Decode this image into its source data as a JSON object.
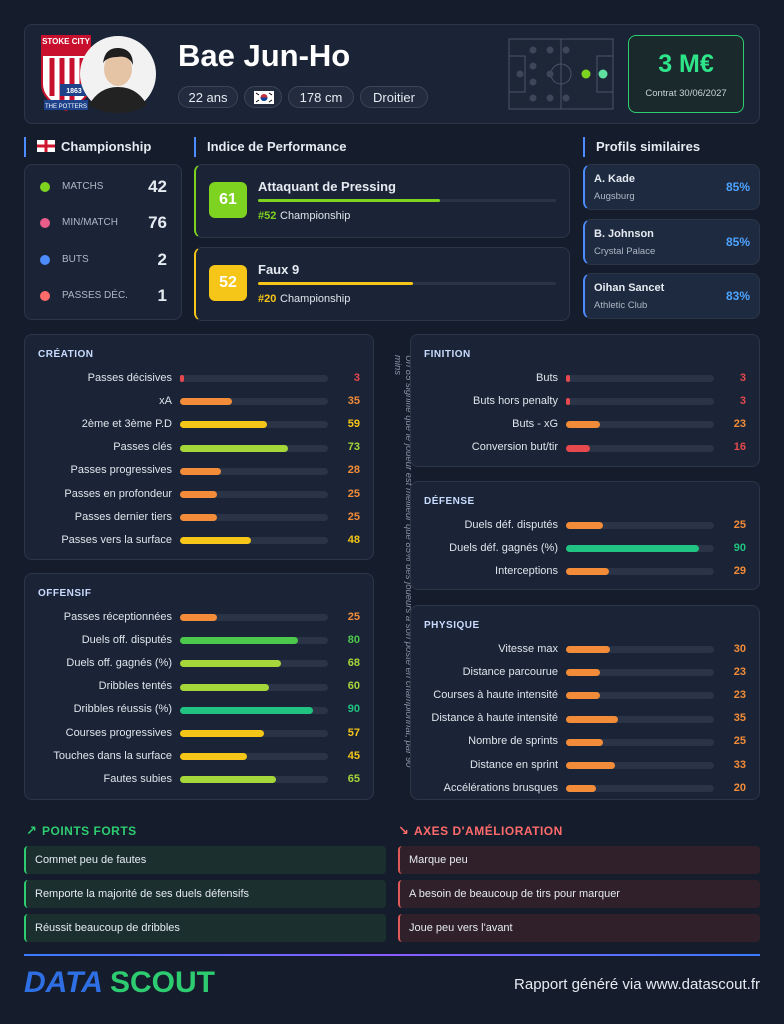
{
  "header": {
    "badge_top": "STOKE CITY",
    "badge_year": "1863",
    "badge_bottom": "THE POTTERS",
    "name": "Bae Jun-Ho",
    "age": "22 ans",
    "height": "178 cm",
    "foot": "Droitier",
    "value": "3 M€",
    "contract": "Contrat 30/06/2027"
  },
  "league": {
    "title": "Championship",
    "stats": [
      {
        "label": "MATCHS",
        "value": 42,
        "color": "#7ed321"
      },
      {
        "label": "MIN/MATCH",
        "value": 76,
        "color": "#e85d8a"
      },
      {
        "label": "BUTS",
        "value": 2,
        "color": "#4d8cff"
      },
      {
        "label": "PASSES DÉC.",
        "value": 1,
        "color": "#ff6b6b"
      }
    ]
  },
  "performance": {
    "title": "Indice de Performance",
    "items": [
      {
        "score": 61,
        "role": "Attaquant de Pressing",
        "rank": "#52",
        "league": "Championship",
        "color": "#7ed321"
      },
      {
        "score": 52,
        "role": "Faux 9",
        "rank": "#20",
        "league": "Championship",
        "color": "#f5c518"
      }
    ]
  },
  "similar": {
    "title": "Profils similaires",
    "items": [
      {
        "name": "A. Kade",
        "club": "Augsburg",
        "pct": "85%"
      },
      {
        "name": "B. Johnson",
        "club": "Crystal Palace",
        "pct": "85%"
      },
      {
        "name": "Oihan Sancet",
        "club": "Athletic Club",
        "pct": "83%"
      }
    ]
  },
  "sections": [
    {
      "title": "CRÉATION",
      "rows": [
        {
          "label": "Passes décisives",
          "value": 3
        },
        {
          "label": "xA",
          "value": 35
        },
        {
          "label": "2ème et 3ème P.D",
          "value": 59
        },
        {
          "label": "Passes clés",
          "value": 73
        },
        {
          "label": "Passes progressives",
          "value": 28
        },
        {
          "label": "Passes en profondeur",
          "value": 25
        },
        {
          "label": "Passes dernier tiers",
          "value": 25
        },
        {
          "label": "Passes vers la surface",
          "value": 48
        }
      ]
    },
    {
      "title": "OFFENSIF",
      "rows": [
        {
          "label": "Passes réceptionnées",
          "value": 25
        },
        {
          "label": "Duels off. disputés",
          "value": 80
        },
        {
          "label": "Duels off. gagnés (%)",
          "value": 68
        },
        {
          "label": "Dribbles tentés",
          "value": 60
        },
        {
          "label": "Dribbles réussis (%)",
          "value": 90
        },
        {
          "label": "Courses progressives",
          "value": 57
        },
        {
          "label": "Touches dans la surface",
          "value": 45
        },
        {
          "label": "Fautes subies",
          "value": 65
        }
      ]
    },
    {
      "title": "FINITION",
      "rows": [
        {
          "label": "Buts",
          "value": 3
        },
        {
          "label": "Buts hors penalty",
          "value": 3
        },
        {
          "label": "Buts - xG",
          "value": 23
        },
        {
          "label": "Conversion but/tir",
          "value": 16
        }
      ]
    },
    {
      "title": "DÉFENSE",
      "rows": [
        {
          "label": "Duels déf. disputés",
          "value": 25
        },
        {
          "label": "Duels déf. gagnés (%)",
          "value": 90
        },
        {
          "label": "Interceptions",
          "value": 29
        }
      ]
    },
    {
      "title": "PHYSIQUE",
      "rows": [
        {
          "label": "Vitesse max",
          "value": 30
        },
        {
          "label": "Distance parcourue",
          "value": 23
        },
        {
          "label": "Courses à haute intensité",
          "value": 23
        },
        {
          "label": "Distance à haute intensité",
          "value": 35
        },
        {
          "label": "Nombre de sprints",
          "value": 25
        },
        {
          "label": "Distance en sprint",
          "value": 33
        },
        {
          "label": "Accélérations brusques",
          "value": 20
        }
      ]
    }
  ],
  "note": "Un 85 signifie que le joueur est meilleur que 85% des joueurs à son poste en championnat, par 90 mins",
  "strengths": {
    "title": "POINTS FORTS",
    "items": [
      "Commet peu de fautes",
      "Remporte la majorité de ses duels défensifs",
      "Réussit beaucoup de dribbles"
    ]
  },
  "weaknesses": {
    "title": "AXES D'AMÉLIORATION",
    "items": [
      "Marque peu",
      "A besoin de beaucoup de tirs pour marquer",
      "Joue peu vers l'avant"
    ]
  },
  "footer": {
    "logo_data": "DATA",
    "logo_scout": "SCOUT",
    "text": "Rapport généré via www.datascout.fr"
  }
}
